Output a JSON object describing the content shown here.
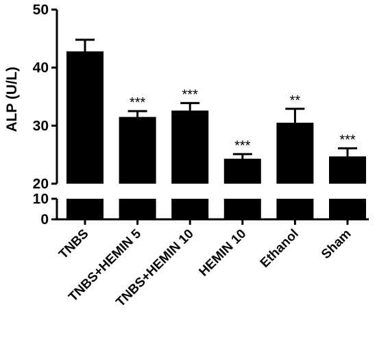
{
  "chart_data": {
    "type": "bar",
    "title": "",
    "xlabel": "",
    "ylabel": "ALP (U/L)",
    "axis_break": true,
    "ylim_lower": [
      0,
      10
    ],
    "ylim_upper": [
      20,
      50
    ],
    "y_ticks_lower": [
      "0",
      "10"
    ],
    "y_ticks_upper": [
      "20",
      "30",
      "40",
      "50"
    ],
    "grid": false,
    "legend": "none",
    "bar_color": "#000000",
    "categories": [
      "TNBS",
      "TNBS+HEMIN 5",
      "TNBS+HEMIN 10",
      "HEMIN 10",
      "Ethanol",
      "Sham"
    ],
    "values": [
      42.8,
      31.5,
      32.6,
      24.3,
      30.5,
      24.7
    ],
    "error": [
      2.0,
      1.0,
      1.3,
      0.8,
      2.4,
      1.4
    ],
    "significance": [
      "",
      "***",
      "***",
      "***",
      "**",
      "***"
    ]
  }
}
